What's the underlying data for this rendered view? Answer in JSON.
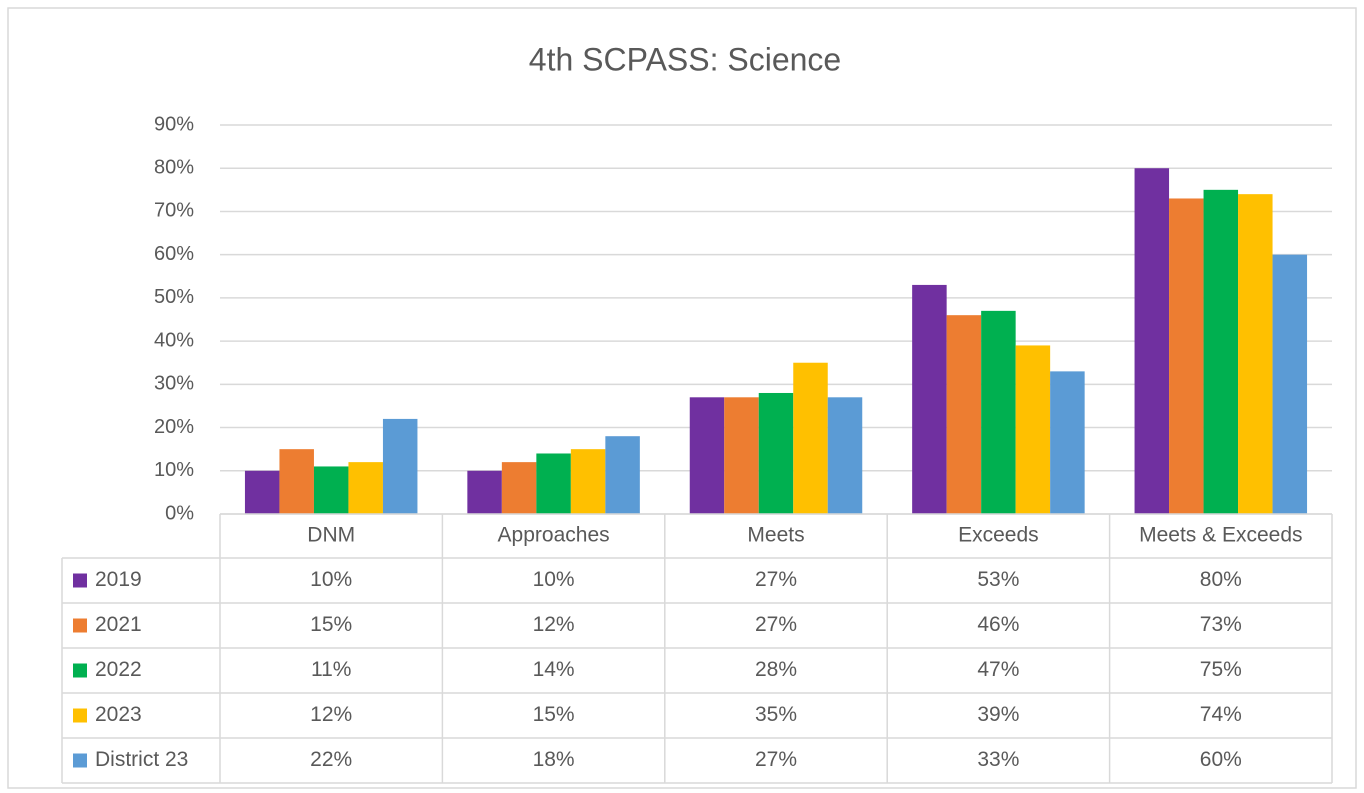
{
  "chart_data": {
    "type": "bar",
    "title": "4th SCPASS: Science",
    "categories": [
      "DNM",
      "Approaches",
      "Meets",
      "Exceeds",
      "Meets & Exceeds"
    ],
    "series": [
      {
        "name": "2019",
        "color": "#7030a0",
        "values": [
          10,
          10,
          27,
          53,
          80
        ],
        "value_labels": [
          "10%",
          "10%",
          "27%",
          "53%",
          "80%"
        ]
      },
      {
        "name": "2021",
        "color": "#ed7d31",
        "values": [
          15,
          12,
          27,
          46,
          73
        ],
        "value_labels": [
          "15%",
          "12%",
          "27%",
          "46%",
          "73%"
        ]
      },
      {
        "name": "2022",
        "color": "#00b050",
        "values": [
          11,
          14,
          28,
          47,
          75
        ],
        "value_labels": [
          "11%",
          "14%",
          "28%",
          "47%",
          "75%"
        ]
      },
      {
        "name": "2023",
        "color": "#ffc000",
        "values": [
          12,
          15,
          35,
          39,
          74
        ],
        "value_labels": [
          "12%",
          "15%",
          "35%",
          "39%",
          "74%"
        ]
      },
      {
        "name": "District 23",
        "color": "#5b9bd5",
        "values": [
          22,
          18,
          27,
          33,
          60
        ],
        "value_labels": [
          "22%",
          "18%",
          "27%",
          "33%",
          "60%"
        ]
      }
    ],
    "ylim": [
      0,
      90
    ],
    "yticks": [
      {
        "value": 0,
        "label": "0%"
      },
      {
        "value": 10,
        "label": "10%"
      },
      {
        "value": 20,
        "label": "20%"
      },
      {
        "value": 30,
        "label": "30%"
      },
      {
        "value": 40,
        "label": "40%"
      },
      {
        "value": 50,
        "label": "50%"
      },
      {
        "value": 60,
        "label": "60%"
      },
      {
        "value": 70,
        "label": "70%"
      },
      {
        "value": 80,
        "label": "80%"
      },
      {
        "value": 90,
        "label": "90%"
      }
    ],
    "grid": true
  }
}
